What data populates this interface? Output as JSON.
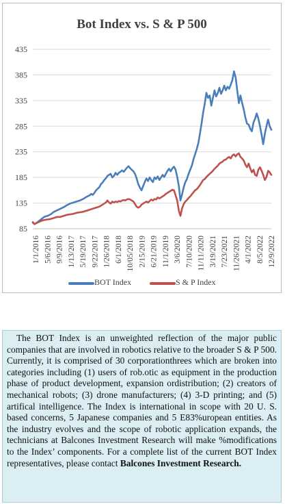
{
  "chart_data": {
    "type": "line",
    "title": "Bot Index vs. S & P 500",
    "yticks": [
      85,
      135,
      185,
      235,
      285,
      335,
      385,
      435
    ],
    "ylim": [
      85,
      435
    ],
    "xticks": [
      "1/1/2016",
      "5/6/2016",
      "9/9/2016",
      "1/13/2017",
      "5/19/2017",
      "9/22/2017",
      "1/26/2018",
      "6/1/2018",
      "10/05/2018",
      "2/15/2019",
      "6/21/2019",
      "11/1/2019",
      "3/6/2020",
      "7/10/2020",
      "11/11/2020",
      "3/19/2021",
      "7/23/2021",
      "11/26/2021",
      "4/1/2022",
      "8/5/2022",
      "12/9/2022"
    ],
    "grid": true,
    "legend_position": "bottom",
    "series": [
      {
        "name": "BOT Index",
        "color": "#4a7ebb",
        "points": [
          [
            0,
            97
          ],
          [
            1,
            94
          ],
          [
            3,
            98
          ],
          [
            5,
            103
          ],
          [
            7,
            108
          ],
          [
            9,
            110
          ],
          [
            11,
            113
          ],
          [
            13,
            118
          ],
          [
            15,
            121
          ],
          [
            17,
            124
          ],
          [
            19,
            127
          ],
          [
            21,
            131
          ],
          [
            23,
            134
          ],
          [
            25,
            136
          ],
          [
            27,
            138
          ],
          [
            29,
            140
          ],
          [
            31,
            143
          ],
          [
            33,
            147
          ],
          [
            35,
            150
          ],
          [
            36,
            153
          ],
          [
            37,
            151
          ],
          [
            38,
            155
          ],
          [
            39,
            160
          ],
          [
            40,
            163
          ],
          [
            41,
            166
          ],
          [
            42,
            172
          ],
          [
            43,
            175
          ],
          [
            44,
            180
          ],
          [
            45,
            183
          ],
          [
            46,
            188
          ],
          [
            47,
            190
          ],
          [
            48,
            192
          ],
          [
            49,
            185
          ],
          [
            50,
            188
          ],
          [
            51,
            194
          ],
          [
            52,
            190
          ],
          [
            53,
            194
          ],
          [
            54,
            196
          ],
          [
            55,
            199
          ],
          [
            56,
            196
          ],
          [
            57,
            200
          ],
          [
            58,
            204
          ],
          [
            59,
            207
          ],
          [
            60,
            203
          ],
          [
            61,
            200
          ],
          [
            62,
            197
          ],
          [
            63,
            192
          ],
          [
            64,
            183
          ],
          [
            65,
            172
          ],
          [
            66,
            165
          ],
          [
            67,
            160
          ],
          [
            68,
            168
          ],
          [
            69,
            176
          ],
          [
            70,
            183
          ],
          [
            71,
            178
          ],
          [
            72,
            185
          ],
          [
            73,
            180
          ],
          [
            74,
            176
          ],
          [
            75,
            185
          ],
          [
            76,
            182
          ],
          [
            77,
            187
          ],
          [
            78,
            180
          ],
          [
            79,
            185
          ],
          [
            80,
            190
          ],
          [
            81,
            186
          ],
          [
            82,
            192
          ],
          [
            83,
            198
          ],
          [
            84,
            202
          ],
          [
            85,
            197
          ],
          [
            86,
            203
          ],
          [
            87,
            206
          ],
          [
            88,
            200
          ],
          [
            89,
            186
          ],
          [
            90,
            168
          ],
          [
            91,
            140
          ],
          [
            92,
            152
          ],
          [
            93,
            166
          ],
          [
            94,
            176
          ],
          [
            95,
            182
          ],
          [
            96,
            192
          ],
          [
            97,
            200
          ],
          [
            98,
            208
          ],
          [
            99,
            220
          ],
          [
            100,
            230
          ],
          [
            101,
            240
          ],
          [
            102,
            252
          ],
          [
            103,
            270
          ],
          [
            104,
            290
          ],
          [
            105,
            312
          ],
          [
            106,
            330
          ],
          [
            107,
            350
          ],
          [
            108,
            340
          ],
          [
            109,
            345
          ],
          [
            110,
            325
          ],
          [
            111,
            340
          ],
          [
            112,
            355
          ],
          [
            113,
            343
          ],
          [
            114,
            350
          ],
          [
            115,
            360
          ],
          [
            116,
            348
          ],
          [
            117,
            355
          ],
          [
            118,
            364
          ],
          [
            119,
            355
          ],
          [
            120,
            362
          ],
          [
            121,
            358
          ],
          [
            122,
            366
          ],
          [
            123,
            375
          ],
          [
            124,
            392
          ],
          [
            125,
            380
          ],
          [
            126,
            355
          ],
          [
            127,
            330
          ],
          [
            128,
            345
          ],
          [
            129,
            330
          ],
          [
            130,
            318
          ],
          [
            131,
            302
          ],
          [
            132,
            290
          ],
          [
            133,
            288
          ],
          [
            134,
            280
          ],
          [
            135,
            275
          ],
          [
            136,
            292
          ],
          [
            137,
            300
          ],
          [
            138,
            310
          ],
          [
            139,
            300
          ],
          [
            140,
            285
          ],
          [
            141,
            268
          ],
          [
            142,
            250
          ],
          [
            143,
            270
          ],
          [
            144,
            285
          ],
          [
            145,
            298
          ],
          [
            146,
            285
          ],
          [
            147,
            278
          ]
        ]
      },
      {
        "name": "S & P Index",
        "color": "#c0504d",
        "points": [
          [
            0,
            98
          ],
          [
            1,
            94
          ],
          [
            3,
            97
          ],
          [
            5,
            100
          ],
          [
            7,
            102
          ],
          [
            9,
            103
          ],
          [
            11,
            104
          ],
          [
            13,
            106
          ],
          [
            15,
            108
          ],
          [
            17,
            108
          ],
          [
            19,
            110
          ],
          [
            21,
            112
          ],
          [
            23,
            113
          ],
          [
            25,
            114
          ],
          [
            27,
            116
          ],
          [
            29,
            117
          ],
          [
            31,
            118
          ],
          [
            33,
            120
          ],
          [
            35,
            122
          ],
          [
            37,
            124
          ],
          [
            39,
            126
          ],
          [
            41,
            128
          ],
          [
            43,
            132
          ],
          [
            45,
            136
          ],
          [
            46,
            140
          ],
          [
            47,
            136
          ],
          [
            48,
            134
          ],
          [
            49,
            138
          ],
          [
            50,
            136
          ],
          [
            51,
            138
          ],
          [
            52,
            137
          ],
          [
            53,
            139
          ],
          [
            54,
            138
          ],
          [
            55,
            140
          ],
          [
            56,
            141
          ],
          [
            57,
            140
          ],
          [
            58,
            142
          ],
          [
            59,
            143
          ],
          [
            60,
            142
          ],
          [
            61,
            140
          ],
          [
            62,
            138
          ],
          [
            63,
            133
          ],
          [
            64,
            128
          ],
          [
            65,
            126
          ],
          [
            66,
            128
          ],
          [
            67,
            132
          ],
          [
            68,
            134
          ],
          [
            69,
            136
          ],
          [
            70,
            138
          ],
          [
            71,
            136
          ],
          [
            72,
            139
          ],
          [
            73,
            142
          ],
          [
            74,
            140
          ],
          [
            75,
            143
          ],
          [
            76,
            142
          ],
          [
            77,
            146
          ],
          [
            78,
            144
          ],
          [
            79,
            146
          ],
          [
            80,
            148
          ],
          [
            81,
            150
          ],
          [
            82,
            153
          ],
          [
            83,
            155
          ],
          [
            84,
            157
          ],
          [
            85,
            159
          ],
          [
            86,
            161
          ],
          [
            87,
            160
          ],
          [
            88,
            150
          ],
          [
            89,
            140
          ],
          [
            90,
            120
          ],
          [
            91,
            110
          ],
          [
            92,
            125
          ],
          [
            93,
            133
          ],
          [
            94,
            138
          ],
          [
            95,
            141
          ],
          [
            96,
            145
          ],
          [
            97,
            148
          ],
          [
            98,
            152
          ],
          [
            99,
            156
          ],
          [
            100,
            160
          ],
          [
            101,
            162
          ],
          [
            102,
            166
          ],
          [
            103,
            170
          ],
          [
            104,
            175
          ],
          [
            105,
            180
          ],
          [
            106,
            182
          ],
          [
            107,
            186
          ],
          [
            108,
            189
          ],
          [
            109,
            192
          ],
          [
            110,
            195
          ],
          [
            111,
            198
          ],
          [
            112,
            202
          ],
          [
            113,
            205
          ],
          [
            114,
            208
          ],
          [
            115,
            212
          ],
          [
            116,
            214
          ],
          [
            117,
            216
          ],
          [
            118,
            219
          ],
          [
            119,
            220
          ],
          [
            120,
            223
          ],
          [
            121,
            225
          ],
          [
            122,
            222
          ],
          [
            123,
            228
          ],
          [
            124,
            230
          ],
          [
            125,
            226
          ],
          [
            126,
            230
          ],
          [
            127,
            232
          ],
          [
            128,
            225
          ],
          [
            129,
            222
          ],
          [
            130,
            218
          ],
          [
            131,
            210
          ],
          [
            132,
            205
          ],
          [
            133,
            212
          ],
          [
            134,
            203
          ],
          [
            135,
            195
          ],
          [
            136,
            200
          ],
          [
            137,
            190
          ],
          [
            138,
            188
          ],
          [
            139,
            200
          ],
          [
            140,
            205
          ],
          [
            141,
            198
          ],
          [
            142,
            190
          ],
          [
            143,
            180
          ],
          [
            144,
            186
          ],
          [
            145,
            198
          ],
          [
            146,
            195
          ],
          [
            147,
            190
          ]
        ]
      }
    ]
  },
  "text_box": {
    "line1": "The BOT Index is an unweighted reflection of the major public companies that are involved in robotics relative to the broader S & P 500. Currently, it is comprised of 30 corporationthrees which are broken into categories including (1) users of rob.otic as equipment in the production phase of product development, expansion ordistribution; (2) creators of mechanical robots; (3) drone manufacturers; (4) 3-D printing; and (5) artifical intelligence. The Index is international in scope with 20 U. S. based concerns, 5 Japanese companies and 5 E83%uropean entities. As the industry evolves and the scope of robotic application expands, the technicians at Balcones Investment Research will make %modifications to the Index’ components. For a  complete list of the current BOT Index representatives, please contact ",
    "bold_end": "Balcones Investment Research."
  }
}
